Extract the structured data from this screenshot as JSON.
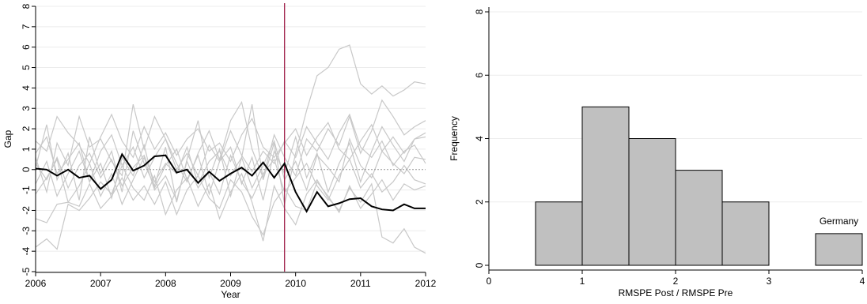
{
  "chart_data": [
    {
      "type": "line",
      "xlabel": "Year",
      "ylabel": "Gap",
      "xlim": [
        2006,
        2012
      ],
      "ylim": [
        -5,
        8
      ],
      "xticks": [
        2006,
        2007,
        2008,
        2009,
        2010,
        2011,
        2012
      ],
      "yticks": [
        -5,
        -4,
        -3,
        -2,
        -1,
        0,
        1,
        2,
        3,
        4,
        5,
        6,
        7,
        8
      ],
      "grid": true,
      "reference_lines": {
        "vertical_x": 2009.83,
        "horizontal_y": 0
      },
      "colors": {
        "treated": "#000000",
        "placebo": "#c8c8c8",
        "vline": "#a0204a"
      },
      "treated": {
        "x": [
          2006,
          2006.17,
          2006.33,
          2006.5,
          2006.67,
          2006.83,
          2007,
          2007.17,
          2007.33,
          2007.5,
          2007.67,
          2007.83,
          2008,
          2008.17,
          2008.33,
          2008.5,
          2008.67,
          2008.83,
          2009,
          2009.17,
          2009.33,
          2009.5,
          2009.67,
          2009.83,
          2010,
          2010.17,
          2010.33,
          2010.5,
          2010.67,
          2010.83,
          2011,
          2011.17,
          2011.33,
          2011.5,
          2011.67,
          2011.83,
          2012
        ],
        "y": [
          0.05,
          0.0,
          -0.3,
          0.0,
          -0.4,
          -0.3,
          -0.95,
          -0.5,
          0.75,
          -0.05,
          0.2,
          0.65,
          0.7,
          -0.15,
          0.0,
          -0.65,
          -0.1,
          -0.55,
          -0.2,
          0.1,
          -0.3,
          0.35,
          -0.4,
          0.3,
          -1.1,
          -2.05,
          -1.1,
          -1.8,
          -1.65,
          -1.45,
          -1.4,
          -1.8,
          -1.95,
          -2.0,
          -1.7,
          -1.9,
          -1.9
        ]
      },
      "placebo_series": [
        [
          0.1,
          2.2,
          -0.5,
          0.8,
          -1.5,
          1.6,
          -0.2,
          0.9,
          -1.1,
          1.9,
          0.3,
          -0.8,
          1.1,
          -1.6,
          0.5,
          2.4,
          -0.4,
          1.0,
          -1.3,
          0.6,
          3.2,
          -0.5,
          1.3,
          -1.7,
          0.8,
          2.9,
          4.6,
          5.0,
          5.9,
          6.1,
          4.2,
          3.7,
          4.1,
          3.6,
          3.9,
          4.3,
          4.2
        ],
        [
          -3.8,
          -3.4,
          -3.9,
          -1.7,
          -2.0,
          -1.4,
          -0.6,
          -1.2,
          0.2,
          -0.9,
          -1.5,
          -0.3,
          -2.2,
          -1.0,
          -0.4,
          -1.8,
          -0.7,
          -2.4,
          -1.1,
          -0.2,
          -1.6,
          -3.5,
          -0.8,
          -1.9,
          -2.7,
          -1.2,
          -0.5,
          -1.4,
          -2.0,
          -0.9,
          -1.6,
          -0.7,
          -3.3,
          -3.6,
          -2.9,
          -3.8,
          -4.1
        ],
        [
          0.6,
          -1.1,
          1.3,
          0.2,
          2.6,
          1.1,
          1.5,
          0.4,
          -0.3,
          3.2,
          1.0,
          2.6,
          1.5,
          0.3,
          -0.6,
          0.8,
          1.9,
          0.5,
          2.4,
          3.3,
          1.0,
          -0.4,
          1.7,
          0.6,
          -0.3,
          1.5,
          0.9,
          2.0,
          1.2,
          2.6,
          0.8,
          1.9,
          3.4,
          2.6,
          1.7,
          2.1,
          2.4
        ],
        [
          -0.7,
          0.4,
          -1.3,
          -0.2,
          0.9,
          -0.6,
          0.3,
          -1.4,
          0.6,
          -0.3,
          1.2,
          -0.9,
          0.2,
          1.0,
          -0.5,
          0.7,
          -1.2,
          0.4,
          1.1,
          -0.7,
          0.6,
          -1.5,
          0.9,
          -0.2,
          1.6,
          -0.4,
          0.8,
          -1.1,
          0.3,
          1.3,
          -0.6,
          0.9,
          2.1,
          1.2,
          0.4,
          1.5,
          1.8
        ],
        [
          -2.4,
          -2.6,
          -1.7,
          -1.6,
          -1.8,
          -0.7,
          -1.9,
          -1.3,
          -0.4,
          -1.5,
          -0.8,
          -1.7,
          -0.6,
          -2.2,
          -1.0,
          -0.3,
          -1.4,
          -1.9,
          -0.5,
          -1.1,
          -2.3,
          -3.2,
          -1.6,
          -0.9,
          -1.8,
          -2.0,
          -0.6,
          -1.3,
          -2.1,
          -0.8,
          -1.9,
          -1.2,
          -0.5,
          -1.5,
          -0.7,
          -1.0,
          -0.8
        ],
        [
          1.4,
          0.9,
          2.6,
          1.8,
          1.2,
          0.3,
          1.6,
          2.7,
          1.4,
          0.6,
          2.1,
          1.0,
          1.8,
          0.7,
          1.5,
          2.0,
          0.9,
          1.3,
          0.4,
          1.7,
          2.5,
          1.1,
          0.6,
          1.3,
          2.0,
          0.7,
          1.6,
          2.3,
          1.0,
          0.5,
          1.4,
          2.2,
          0.9,
          1.6,
          0.8,
          1.5,
          1.6
        ],
        [
          0.3,
          -0.5,
          0.6,
          -0.9,
          0.2,
          0.8,
          -0.4,
          0.5,
          -0.8,
          0.1,
          0.7,
          -0.6,
          0.3,
          -0.2,
          1.1,
          -0.7,
          0.4,
          0.9,
          -0.3,
          0.6,
          -0.9,
          0.2,
          1.4,
          -0.5,
          0.4,
          -1.0,
          0.7,
          0.1,
          -0.6,
          1.5,
          0.2,
          -0.4,
          0.9,
          0.3,
          -0.2,
          0.6,
          0.5
        ],
        [
          -1.2,
          -0.4,
          0.5,
          -1.6,
          -0.8,
          0.3,
          -1.3,
          -0.2,
          -1.7,
          -0.5,
          0.6,
          -1.0,
          -0.3,
          -1.5,
          0.4,
          -0.9,
          -0.1,
          -1.2,
          0.7,
          -0.6,
          -1.4,
          -0.2,
          0.5,
          -1.1,
          -0.4,
          0.3,
          -0.8,
          -1.5,
          -0.3,
          0.5,
          -0.9,
          -0.2,
          -1.1,
          -0.6,
          0.2,
          -0.5,
          -0.7
        ],
        [
          0.8,
          1.6,
          -0.2,
          0.5,
          1.3,
          -0.6,
          0.9,
          1.7,
          0.2,
          1.1,
          -0.4,
          0.6,
          1.5,
          0.0,
          0.8,
          -0.3,
          1.2,
          0.4,
          1.9,
          0.7,
          -0.1,
          0.9,
          0.3,
          1.4,
          0.6,
          2.1,
          1.3,
          0.5,
          1.8,
          2.7,
          1.1,
          0.6,
          1.4,
          0.2,
          0.9,
          1.2,
          0.3
        ]
      ]
    },
    {
      "type": "bar",
      "subtype": "histogram",
      "xlabel": "RMSPE Post / RMSPE Pre",
      "ylabel": "Frequency",
      "xlim": [
        0,
        4
      ],
      "ylim": [
        0,
        8
      ],
      "xticks": [
        0,
        1,
        2,
        3,
        4
      ],
      "yticks": [
        0,
        2,
        4,
        6,
        8
      ],
      "grid": true,
      "colors": {
        "bar_fill": "#c0c0c0",
        "bar_stroke": "#000000"
      },
      "bins": [
        {
          "from": 0.5,
          "to": 1.0,
          "value": 2
        },
        {
          "from": 1.0,
          "to": 1.5,
          "value": 5
        },
        {
          "from": 1.5,
          "to": 2.0,
          "value": 4
        },
        {
          "from": 2.0,
          "to": 2.5,
          "value": 3
        },
        {
          "from": 2.5,
          "to": 3.0,
          "value": 2
        },
        {
          "from": 3.5,
          "to": 4.0,
          "value": 1
        }
      ],
      "annotations": [
        {
          "text": "Germany",
          "x": 3.75,
          "y": 1
        }
      ]
    }
  ]
}
